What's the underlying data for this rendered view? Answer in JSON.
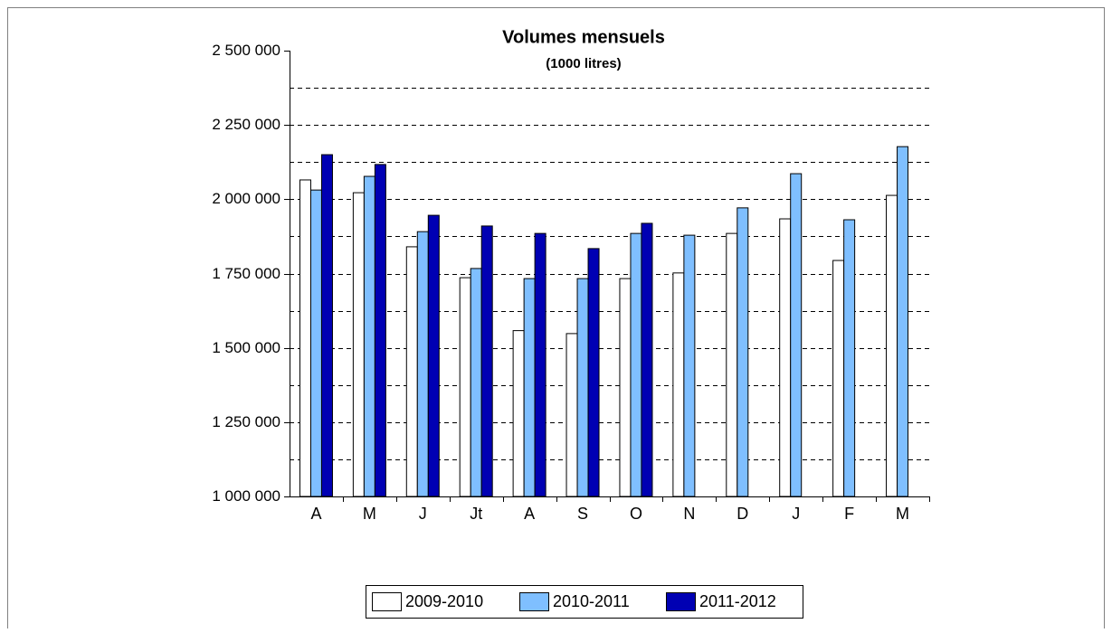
{
  "chart_data": {
    "type": "bar",
    "title": "Volumes mensuels",
    "subtitle": "(1000 litres)",
    "categories": [
      "A",
      "M",
      "J",
      "Jt",
      "A",
      "S",
      "O",
      "N",
      "D",
      "J",
      "F",
      "M"
    ],
    "series": [
      {
        "name": "2009-2010",
        "color": "#ffffff",
        "values": [
          2065000,
          2022000,
          1840000,
          1736000,
          1558000,
          1548000,
          1733000,
          1752000,
          1885000,
          1934000,
          1794000,
          2013000
        ]
      },
      {
        "name": "2010-2011",
        "color": "#7fbfff",
        "values": [
          2031000,
          2077000,
          1891000,
          1767000,
          1733000,
          1733000,
          1885000,
          1879000,
          1971000,
          2086000,
          1931000,
          2177000
        ]
      },
      {
        "name": "2011-2012",
        "color": "#0000b3",
        "values": [
          2150000,
          2117000,
          1946000,
          1910000,
          1885000,
          1834000,
          1919000,
          null,
          null,
          null,
          null,
          null
        ]
      }
    ],
    "ylim": [
      1000000,
      2500000
    ],
    "yticks": [
      {
        "value": 1000000,
        "label": "1 000 000"
      },
      {
        "value": 1250000,
        "label": "1 250 000"
      },
      {
        "value": 1500000,
        "label": "1 500 000"
      },
      {
        "value": 1750000,
        "label": "1 750 000"
      },
      {
        "value": 2000000,
        "label": "2 000 000"
      },
      {
        "value": 2250000,
        "label": "2 250 000"
      },
      {
        "value": 2500000,
        "label": "2 500 000"
      }
    ],
    "ygrid": [
      1125000,
      1250000,
      1375000,
      1500000,
      1625000,
      1750000,
      1875000,
      2000000,
      2125000,
      2250000,
      2375000
    ],
    "legend": "bottom"
  }
}
